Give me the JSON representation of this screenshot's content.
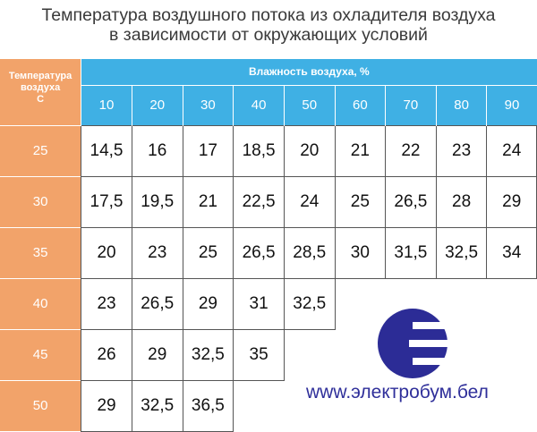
{
  "title": {
    "line1": "Температура воздушного потока из охладителя воздуха",
    "line2": "в зависимости от окружающих условий"
  },
  "table": {
    "corner_label": {
      "line1": "Температура",
      "line2": "воздуха",
      "line3": "С"
    },
    "humidity_header": "Влажность воздуха, %",
    "humidity_values": [
      "10",
      "20",
      "30",
      "40",
      "50",
      "60",
      "70",
      "80",
      "90"
    ],
    "rows": [
      {
        "temp": "25",
        "cells": [
          "14,5",
          "16",
          "17",
          "18,5",
          "20",
          "21",
          "22",
          "23",
          "24"
        ]
      },
      {
        "temp": "30",
        "cells": [
          "17,5",
          "19,5",
          "21",
          "22,5",
          "24",
          "25",
          "26,5",
          "28",
          "29"
        ]
      },
      {
        "temp": "35",
        "cells": [
          "20",
          "23",
          "25",
          "26,5",
          "28,5",
          "30",
          "31,5",
          "32,5",
          "34"
        ]
      },
      {
        "temp": "40",
        "cells": [
          "23",
          "26,5",
          "29",
          "31",
          "32,5"
        ]
      },
      {
        "temp": "45",
        "cells": [
          "26",
          "29",
          "32,5",
          "35"
        ]
      },
      {
        "temp": "50",
        "cells": [
          "29",
          "32,5",
          "36,5"
        ]
      }
    ]
  },
  "colors": {
    "header_blue": "#3fb0e4",
    "row_orange": "#f2a36a",
    "logo_blue": "#2c2c96",
    "site_text": "#2f2f9a"
  },
  "logo": {
    "icon": "euro-e-logo-icon"
  },
  "website": "www.электробум.бел"
}
